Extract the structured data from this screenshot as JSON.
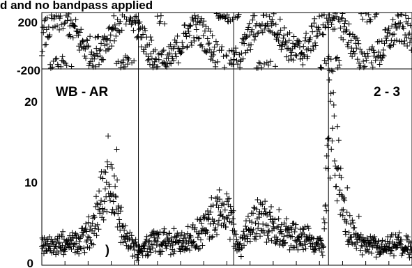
{
  "chart_data": {
    "type": "scatter",
    "title": "d and no bandpass applied",
    "marker": "+",
    "marker_color": "#000000",
    "panels": [
      {
        "id": "phase",
        "ylim": [
          -200,
          200
        ],
        "y_tick_labels": [
          {
            "value": 200,
            "label": "200"
          },
          {
            "value": -200,
            "label": "-200"
          }
        ]
      },
      {
        "id": "amplitude",
        "ylim": [
          0,
          25
        ],
        "y_tick_labels": [
          {
            "value": 0,
            "label": "0"
          },
          {
            "value": 10,
            "label": "10"
          },
          {
            "value": 20,
            "label": "20"
          }
        ],
        "annotations": [
          "WB - AR",
          "2 - 3"
        ],
        "partial_glyph": ")"
      }
    ],
    "x_range": [
      0,
      1
    ],
    "segment_boundaries": [
      0.2609,
      0.5185,
      0.7744
    ],
    "amplitude_profile": [
      {
        "x": 0.0,
        "y": 2.5
      },
      {
        "x": 0.05,
        "y": 2.8
      },
      {
        "x": 0.1,
        "y": 3.0
      },
      {
        "x": 0.12,
        "y": 4.0
      },
      {
        "x": 0.14,
        "y": 5.5
      },
      {
        "x": 0.16,
        "y": 9.0
      },
      {
        "x": 0.18,
        "y": 11.5
      },
      {
        "x": 0.2,
        "y": 9.0
      },
      {
        "x": 0.22,
        "y": 4.0
      },
      {
        "x": 0.26,
        "y": 2.0
      },
      {
        "x": 0.3,
        "y": 3.5
      },
      {
        "x": 0.35,
        "y": 3.0
      },
      {
        "x": 0.4,
        "y": 3.5
      },
      {
        "x": 0.43,
        "y": 4.5
      },
      {
        "x": 0.46,
        "y": 6.0
      },
      {
        "x": 0.49,
        "y": 8.0
      },
      {
        "x": 0.51,
        "y": 6.5
      },
      {
        "x": 0.53,
        "y": 2.0
      },
      {
        "x": 0.55,
        "y": 4.5
      },
      {
        "x": 0.58,
        "y": 6.5
      },
      {
        "x": 0.61,
        "y": 6.0
      },
      {
        "x": 0.64,
        "y": 4.5
      },
      {
        "x": 0.68,
        "y": 4.0
      },
      {
        "x": 0.72,
        "y": 3.5
      },
      {
        "x": 0.76,
        "y": 2.5
      },
      {
        "x": 0.78,
        "y": 22.0
      },
      {
        "x": 0.8,
        "y": 13.0
      },
      {
        "x": 0.82,
        "y": 6.0
      },
      {
        "x": 0.85,
        "y": 3.5
      },
      {
        "x": 0.88,
        "y": 2.5
      },
      {
        "x": 0.92,
        "y": 2.3
      },
      {
        "x": 0.96,
        "y": 2.8
      },
      {
        "x": 1.0,
        "y": 2.0
      }
    ]
  }
}
